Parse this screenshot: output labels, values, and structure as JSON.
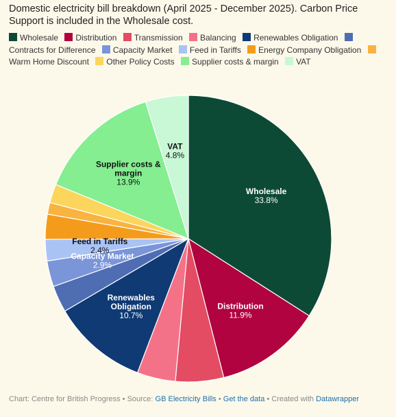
{
  "title": "Domestic electricity bill breakdown (April 2025 - December 2025). Carbon Price Support is included in the Wholesale cost.",
  "chart_data": {
    "type": "pie",
    "title": "Domestic electricity bill breakdown (April 2025 - December 2025). Carbon Price Support is included in the Wholesale cost.",
    "unit": "%",
    "legend_position": "top",
    "slices": [
      {
        "name": "Wholesale",
        "value": 33.8,
        "color": "#0c4a35",
        "label": "Wholesale",
        "value_label": "33.8%",
        "label_color": "#ffffff"
      },
      {
        "name": "Distribution",
        "value": 11.9,
        "color": "#b0033f",
        "label": "Distribution",
        "value_label": "11.9%",
        "label_color": "#ffffff"
      },
      {
        "name": "Transmission",
        "value": 5.4,
        "color": "#e34c63",
        "label": "",
        "value_label": "",
        "label_color": "#ffffff"
      },
      {
        "name": "Balancing",
        "value": 4.3,
        "color": "#f47288",
        "label": "",
        "value_label": "",
        "label_color": "#ffffff"
      },
      {
        "name": "Renewables Obligation",
        "value": 10.7,
        "color": "#0f3a74",
        "label": "Renewables Obligation",
        "value_label": "10.7%",
        "label_color": "#ffffff"
      },
      {
        "name": "Contracts for Difference",
        "value": 3.0,
        "color": "#4f6db2",
        "label": "",
        "value_label": "",
        "label_color": "#ffffff"
      },
      {
        "name": "Capacity Market",
        "value": 2.9,
        "color": "#7a95d8",
        "label": "Capacity Market",
        "value_label": "2.9%",
        "label_color": "#ffffff"
      },
      {
        "name": "Feed in Tariffs",
        "value": 2.4,
        "color": "#a9c3f5",
        "label": "Feed in Tariffs",
        "value_label": "2.4%",
        "label_color": "#111111"
      },
      {
        "name": "Energy Company Obligation",
        "value": 2.8,
        "color": "#f59b1b",
        "label": "",
        "value_label": "",
        "label_color": "#111111"
      },
      {
        "name": "Warm Home Discount",
        "value": 1.3,
        "color": "#f8b340",
        "label": "",
        "value_label": "",
        "label_color": "#111111"
      },
      {
        "name": "Other Policy Costs",
        "value": 2.1,
        "color": "#fbd55c",
        "label": "",
        "value_label": "",
        "label_color": "#111111"
      },
      {
        "name": "Supplier costs & margin",
        "value": 13.9,
        "color": "#84ee91",
        "label": "Supplier costs & margin",
        "value_label": "13.9%",
        "label_color": "#111111"
      },
      {
        "name": "VAT",
        "value": 4.8,
        "color": "#c8f8d6",
        "label": "VAT",
        "value_label": "4.8%",
        "label_color": "#111111"
      }
    ]
  },
  "footer": {
    "prefix": "Chart: Centre for British Progress • Source: ",
    "source_link": "GB Electricity Bills",
    "sep1": " • ",
    "data_link": "Get the data",
    "sep2": " • Created with ",
    "tool_link": "Datawrapper"
  }
}
